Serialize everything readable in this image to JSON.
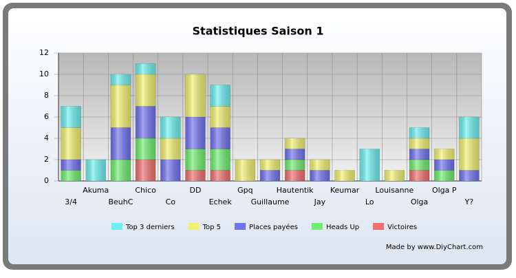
{
  "chart_data": {
    "type": "stacked_bar",
    "title": "Statistiques Saison 1",
    "categories": [
      "3/4",
      "Akuma",
      "BeuhC",
      "Chico",
      "Co",
      "DD",
      "Echek",
      "Gpq",
      "Guillaume",
      "Hautentik",
      "Jay",
      "Keumar",
      "Lo",
      "Louisanne",
      "Olga",
      "Olga P",
      "Y?"
    ],
    "series": [
      {
        "name": "Victoires",
        "color": "#f07070",
        "values": [
          0,
          0,
          0,
          2,
          0,
          1,
          1,
          0,
          0,
          1,
          0,
          0,
          0,
          0,
          1,
          0,
          0
        ]
      },
      {
        "name": "Heads Up",
        "color": "#70ee70",
        "values": [
          1,
          0,
          2,
          2,
          0,
          2,
          2,
          0,
          0,
          1,
          0,
          0,
          0,
          0,
          1,
          1,
          0
        ]
      },
      {
        "name": "Places payées",
        "color": "#7272f0",
        "values": [
          1,
          0,
          3,
          3,
          2,
          3,
          2,
          0,
          1,
          1,
          1,
          0,
          0,
          0,
          1,
          1,
          1
        ]
      },
      {
        "name": "Top 5",
        "color": "#f2f272",
        "values": [
          3,
          0,
          4,
          3,
          2,
          4,
          2,
          2,
          1,
          1,
          1,
          1,
          0,
          1,
          1,
          1,
          3
        ]
      },
      {
        "name": "Top 3 derniers",
        "color": "#6ef0f0",
        "values": [
          2,
          2,
          1,
          1,
          2,
          0,
          2,
          0,
          0,
          0,
          0,
          0,
          3,
          0,
          1,
          0,
          2
        ]
      }
    ],
    "ylim": [
      0,
      12
    ],
    "yticks": [
      0,
      2,
      4,
      6,
      8,
      10,
      12
    ],
    "grid": true,
    "credit": "Made by www.DiyChart.com"
  }
}
